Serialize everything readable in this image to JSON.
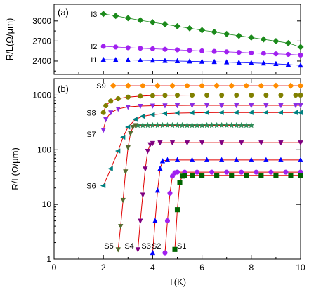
{
  "chart_data": [
    {
      "panel_label": "(a)",
      "type": "scatter",
      "xlabel": "",
      "ylabel": "R/L(Ω/μm)",
      "xlim": [
        0,
        10
      ],
      "ylim": [
        2200,
        3250
      ],
      "yticks": [
        "2400",
        "2700",
        "3000"
      ],
      "y_scale": "linear",
      "series": [
        {
          "name": "I3",
          "color": "#1b8a1b",
          "marker": "diamond",
          "x": [
            2.0,
            2.5,
            3.0,
            3.5,
            4.0,
            4.5,
            5.0,
            5.5,
            6.0,
            6.5,
            7.0,
            7.5,
            8.0,
            8.5,
            9.0,
            9.5,
            10.0
          ],
          "y": [
            3105,
            3075,
            3042,
            3010,
            2980,
            2950,
            2920,
            2890,
            2862,
            2835,
            2805,
            2778,
            2752,
            2725,
            2698,
            2668,
            2610
          ]
        },
        {
          "name": "I2",
          "color": "#a020f0",
          "marker": "circle",
          "x": [
            2.0,
            2.5,
            3.0,
            3.5,
            4.0,
            4.5,
            5.0,
            5.5,
            6.0,
            6.5,
            7.0,
            7.5,
            8.0,
            8.5,
            9.0,
            9.5,
            10.0
          ],
          "y": [
            2620,
            2610,
            2600,
            2592,
            2584,
            2576,
            2568,
            2560,
            2552,
            2545,
            2538,
            2530,
            2522,
            2515,
            2508,
            2500,
            2490
          ]
        },
        {
          "name": "I1",
          "color": "#0000ff",
          "marker": "triangle-up",
          "x": [
            2.0,
            2.5,
            3.0,
            3.5,
            4.0,
            4.5,
            5.0,
            5.5,
            6.0,
            6.5,
            7.0,
            7.5,
            8.0,
            8.5,
            9.0,
            9.5,
            10.0
          ],
          "y": [
            2420,
            2418,
            2415,
            2412,
            2408,
            2404,
            2400,
            2396,
            2392,
            2388,
            2383,
            2378,
            2372,
            2366,
            2358,
            2348,
            2335
          ]
        }
      ]
    },
    {
      "panel_label": "(b)",
      "type": "scatter",
      "xlabel": "T(K)",
      "ylabel": "R/L(Ω/μm)",
      "xlim": [
        0,
        10
      ],
      "xticks": [
        "0",
        "2",
        "4",
        "6",
        "8",
        "10"
      ],
      "ylim": [
        1,
        2000
      ],
      "yticks": [
        "1",
        "10",
        "100",
        "1000"
      ],
      "y_scale": "log",
      "series": [
        {
          "name": "S9",
          "color": "#ff8c00",
          "marker": "diamond",
          "x": [
            2.4,
            3.0,
            3.6,
            4.2,
            4.8,
            5.4,
            6.0,
            6.6,
            7.2,
            7.8,
            8.4,
            9.0,
            9.6,
            10.0
          ],
          "y": [
            1480,
            1480,
            1480,
            1480,
            1480,
            1480,
            1480,
            1480,
            1480,
            1480,
            1480,
            1480,
            1480,
            1480
          ]
        },
        {
          "name": "S8",
          "color": "#808000",
          "marker": "circle",
          "x": [
            2.0,
            2.1,
            2.3,
            2.6,
            3.0,
            3.5,
            4.0,
            4.5,
            5.0,
            5.6,
            6.2,
            6.8,
            7.4,
            8.0,
            8.6,
            9.2,
            9.8,
            10.0
          ],
          "y": [
            480,
            640,
            780,
            860,
            920,
            960,
            980,
            990,
            995,
            998,
            998,
            998,
            998,
            998,
            998,
            998,
            998,
            998
          ]
        },
        {
          "name": "S7",
          "color": "#8a2be2",
          "marker": "triangle-down",
          "x": [
            2.0,
            2.1,
            2.3,
            2.6,
            3.0,
            3.5,
            4.0,
            4.5,
            5.0,
            5.6,
            6.2,
            6.8,
            7.4,
            8.0,
            8.6,
            9.2,
            9.8,
            10.0
          ],
          "y": [
            230,
            360,
            480,
            560,
            610,
            630,
            640,
            645,
            648,
            650,
            650,
            650,
            650,
            650,
            650,
            650,
            650,
            650
          ]
        },
        {
          "name": "S6",
          "color": "#008080",
          "marker": "triangle-left",
          "x": [
            2.0,
            2.3,
            2.6,
            2.8,
            3.0,
            3.3,
            3.6,
            4.0,
            4.5,
            5.0,
            5.6,
            6.2,
            6.8,
            7.4,
            8.0,
            8.6,
            9.2,
            9.8,
            10.0
          ],
          "y": [
            22,
            45,
            95,
            170,
            260,
            360,
            410,
            440,
            460,
            470,
            475,
            478,
            480,
            480,
            480,
            480,
            480,
            480,
            480
          ]
        },
        {
          "name": "",
          "color": "#2e8b57",
          "marker": "star",
          "x": [
            3.4,
            3.6,
            3.8,
            4.0,
            4.2,
            4.4,
            4.6,
            4.8,
            5.0,
            5.2,
            5.4,
            5.6,
            5.8,
            6.0,
            6.2,
            6.4,
            6.6,
            6.8,
            7.0,
            7.2,
            7.4,
            7.6,
            7.8,
            8.0
          ],
          "y": [
            280,
            280,
            280,
            280,
            280,
            280,
            280,
            280,
            280,
            280,
            280,
            280,
            280,
            280,
            280,
            280,
            280,
            280,
            280,
            280,
            280,
            280,
            280,
            280
          ]
        },
        {
          "name": "S5",
          "color": "#556b2f",
          "marker": "triangle-down",
          "x": [
            2.6,
            2.7,
            2.8,
            2.9,
            3.0,
            3.1,
            3.2,
            3.3
          ],
          "y": [
            1.5,
            4,
            12,
            40,
            110,
            200,
            260,
            280
          ]
        },
        {
          "name": "S4",
          "color": "#800080",
          "marker": "triangle-down",
          "x": [
            3.4,
            3.5,
            3.6,
            3.7,
            3.8,
            3.9,
            4.0,
            4.3,
            4.8,
            5.4,
            6.0,
            6.8,
            7.6,
            8.4,
            9.2,
            10.0
          ],
          "y": [
            1.5,
            5,
            15,
            45,
            95,
            125,
            132,
            135,
            135,
            135,
            135,
            135,
            135,
            135,
            135,
            135
          ]
        },
        {
          "name": "S3",
          "color": "#0000ff",
          "marker": "triangle-up",
          "x": [
            4.0,
            4.1,
            4.2,
            4.3,
            4.4,
            4.6,
            5.0,
            5.6,
            6.2,
            6.8,
            7.4,
            8.0,
            8.6,
            9.2,
            10.0
          ],
          "y": [
            1.3,
            5,
            18,
            45,
            62,
            65,
            65,
            65,
            65,
            65,
            65,
            65,
            65,
            65,
            65
          ]
        },
        {
          "name": "S2",
          "color": "#a020f0",
          "marker": "circle",
          "x": [
            4.5,
            4.6,
            4.7,
            4.8,
            4.9,
            5.0,
            5.3,
            5.8,
            6.4,
            7.0,
            7.6,
            8.2,
            8.8,
            9.4,
            10.0
          ],
          "y": [
            1.3,
            5,
            16,
            33,
            38,
            39,
            39,
            39,
            39,
            39,
            39,
            39,
            39,
            39,
            39
          ]
        },
        {
          "name": "S1",
          "color": "#006400",
          "marker": "square",
          "x": [
            4.9,
            5.0,
            5.1,
            5.2,
            5.3,
            5.6,
            6.0,
            6.6,
            7.2,
            7.8,
            8.4,
            9.0,
            9.6,
            10.0
          ],
          "y": [
            1.5,
            8,
            25,
            33,
            34,
            34,
            34,
            34,
            34,
            34,
            34,
            34,
            34,
            34
          ]
        }
      ]
    }
  ]
}
